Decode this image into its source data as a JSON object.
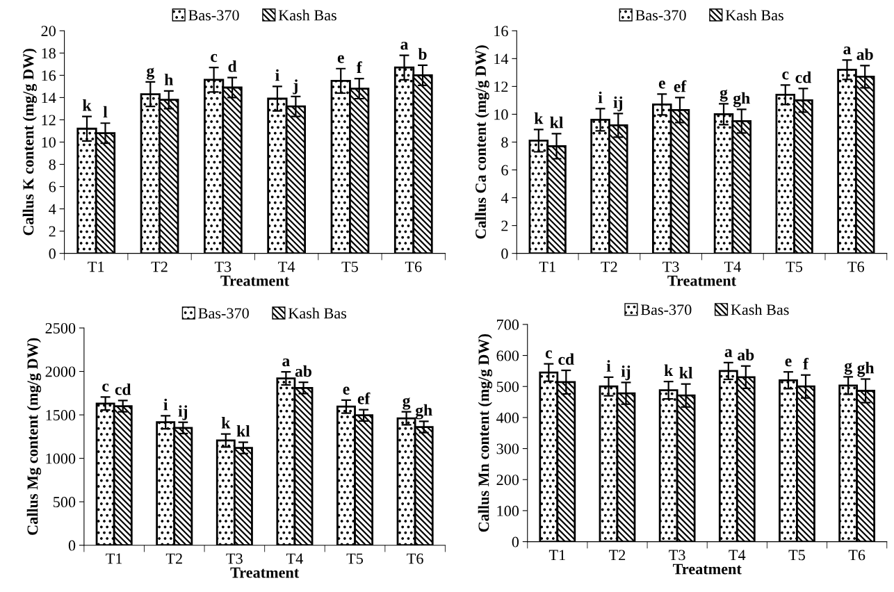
{
  "chart_data": [
    {
      "type": "bar",
      "xlabel": "Treatment",
      "ylabel": "Callus K content (mg/g DW)",
      "categories": [
        "T1",
        "T2",
        "T3",
        "T4",
        "T5",
        "T6"
      ],
      "ylim": [
        0,
        20
      ],
      "yticks": [
        0,
        2,
        4,
        6,
        8,
        10,
        12,
        14,
        16,
        18,
        20
      ],
      "legend": "top",
      "grid": false,
      "series": [
        {
          "name": "Bas-370",
          "color": "#000000",
          "values": [
            11.2,
            14.3,
            15.6,
            13.9,
            15.5,
            16.7
          ],
          "errors": [
            1.1,
            1.1,
            1.1,
            1.1,
            1.1,
            1.1
          ],
          "value_labels": [
            "k",
            "g",
            "c",
            "i",
            "e",
            "a"
          ]
        },
        {
          "name": "Kash Bas",
          "color": "#000000",
          "values": [
            10.8,
            13.8,
            14.9,
            13.2,
            14.8,
            16.0
          ],
          "errors": [
            0.9,
            0.8,
            0.9,
            0.9,
            0.9,
            0.9
          ],
          "value_labels": [
            "l",
            "h",
            "d",
            "j",
            "f",
            "b"
          ]
        }
      ]
    },
    {
      "type": "bar",
      "xlabel": "Treatment",
      "ylabel": "Callus Ca content (mg/g DW)",
      "categories": [
        "T1",
        "T2",
        "T3",
        "T4",
        "T5",
        "T6"
      ],
      "ylim": [
        0,
        16
      ],
      "yticks": [
        0,
        2,
        4,
        6,
        8,
        10,
        12,
        14,
        16
      ],
      "legend": "top",
      "grid": false,
      "series": [
        {
          "name": "Bas-370",
          "color": "#000000",
          "values": [
            8.1,
            9.6,
            10.7,
            10.0,
            11.4,
            13.2
          ],
          "errors": [
            0.8,
            0.8,
            0.75,
            0.75,
            0.7,
            0.7
          ],
          "value_labels": [
            "k",
            "i",
            "e",
            "g",
            "c",
            "a"
          ]
        },
        {
          "name": "Kash Bas",
          "color": "#000000",
          "values": [
            7.7,
            9.2,
            10.3,
            9.5,
            11.0,
            12.7
          ],
          "errors": [
            0.9,
            0.85,
            0.9,
            0.85,
            0.85,
            0.8
          ],
          "value_labels": [
            "kl",
            "ij",
            "ef",
            "gh",
            "cd",
            "ab"
          ]
        }
      ]
    },
    {
      "type": "bar",
      "xlabel": "Treatment",
      "ylabel": "Callus Mg content (mg/g DW)",
      "categories": [
        "T1",
        "T2",
        "T3",
        "T4",
        "T5",
        "T6"
      ],
      "ylim": [
        0,
        2500
      ],
      "yticks": [
        0,
        500,
        1000,
        1500,
        2000,
        2500
      ],
      "legend": "top",
      "grid": false,
      "series": [
        {
          "name": "Bas-370",
          "color": "#000000",
          "values": [
            1630,
            1415,
            1205,
            1920,
            1595,
            1460
          ],
          "errors": [
            75,
            75,
            75,
            75,
            75,
            75
          ],
          "value_labels": [
            "c",
            "i",
            "k",
            "a",
            "e",
            "g"
          ]
        },
        {
          "name": "Kash Bas",
          "color": "#000000",
          "values": [
            1600,
            1350,
            1120,
            1810,
            1495,
            1360
          ],
          "errors": [
            65,
            65,
            65,
            65,
            65,
            65
          ],
          "value_labels": [
            "cd",
            "ij",
            "kl",
            "ab",
            "ef",
            "gh"
          ]
        }
      ]
    },
    {
      "type": "bar",
      "xlabel": "Treatment",
      "ylabel": "Callus Mn content (mg/g DW)",
      "categories": [
        "T1",
        "T2",
        "T3",
        "T4",
        "T5",
        "T6"
      ],
      "ylim": [
        0,
        700
      ],
      "yticks": [
        0,
        100,
        200,
        300,
        400,
        500,
        600,
        700
      ],
      "legend": "top",
      "grid": false,
      "series": [
        {
          "name": "Bas-370",
          "color": "#000000",
          "values": [
            545,
            500,
            488,
            550,
            520,
            503
          ],
          "errors": [
            28,
            30,
            28,
            27,
            27,
            28
          ],
          "value_labels": [
            "c",
            "i",
            "k",
            "a",
            "e",
            "g"
          ]
        },
        {
          "name": "Kash Bas",
          "color": "#000000",
          "values": [
            514,
            478,
            471,
            530,
            500,
            486
          ],
          "errors": [
            38,
            35,
            37,
            36,
            37,
            38
          ],
          "value_labels": [
            "cd",
            "ij",
            "kl",
            "ab",
            "f",
            "gh"
          ]
        }
      ]
    }
  ]
}
